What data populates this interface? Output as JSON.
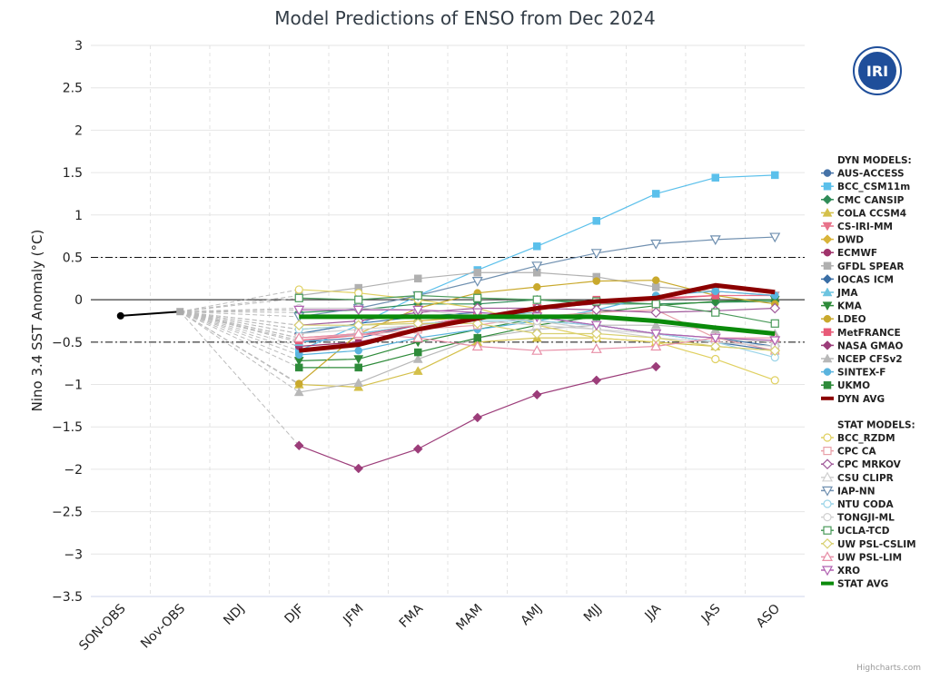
{
  "chart_data": {
    "type": "line",
    "title": "Model Predictions of ENSO from Dec 2024",
    "xlabel": "",
    "ylabel": "Nino 3.4 SST Anomaly (°C)",
    "categories": [
      "SON-OBS",
      "Nov-OBS",
      "NDJ",
      "DJF",
      "JFM",
      "FMA",
      "MAM",
      "AMJ",
      "MJJ",
      "JJA",
      "JAS",
      "ASO"
    ],
    "ylim": [
      -3.5,
      3
    ],
    "yticks": [
      "3",
      "2.5",
      "2",
      "1.5",
      "1",
      "0.5",
      "0",
      "−0.5",
      "−1",
      "−1.5",
      "−2",
      "−2.5",
      "−3",
      "−3.5"
    ],
    "reference_lines": [
      0,
      0.5,
      -0.5
    ],
    "grid": true,
    "legend_position": "right",
    "observed": {
      "categories": [
        "SON-OBS",
        "Nov-OBS"
      ],
      "values": [
        -0.19,
        -0.14
      ],
      "color": "#000000"
    },
    "forecast_categories": [
      "DJF",
      "JFM",
      "FMA",
      "MAM",
      "AMJ",
      "MJJ",
      "JJA",
      "JAS",
      "ASO"
    ],
    "groups": [
      {
        "header": "DYN MODELS:",
        "series": [
          {
            "name": "AUS-ACCESS",
            "color": "#4572a7",
            "marker": "circle",
            "values": [
              -0.5,
              -0.45,
              -0.3,
              -0.2,
              -0.25,
              -0.3,
              -0.4,
              -0.5,
              -0.6
            ]
          },
          {
            "name": "BCC_CSM11m",
            "color": "#5bc0eb",
            "marker": "square",
            "values": [
              -0.6,
              -0.3,
              0.05,
              0.35,
              0.63,
              0.93,
              1.25,
              1.44,
              1.47
            ]
          },
          {
            "name": "CMC CANSIP",
            "color": "#2e8b57",
            "marker": "diamond",
            "values": [
              -0.15,
              -0.12,
              -0.05,
              -0.05,
              0.0,
              -0.05,
              -0.05,
              -0.03,
              -0.02
            ]
          },
          {
            "name": "COLA CCSM4",
            "color": "#d4c04a",
            "marker": "triangle",
            "values": [
              -1.0,
              -1.03,
              -0.84,
              -0.5,
              -0.45,
              -0.45,
              -0.5,
              -0.55,
              -0.6
            ]
          },
          {
            "name": "CS-IRI-MM",
            "color": "#e8728a",
            "marker": "triangle-down",
            "values": [
              -0.45,
              -0.4,
              -0.3,
              -0.2,
              -0.1,
              -0.05,
              0.0,
              0.05,
              0.05
            ]
          },
          {
            "name": "DWD",
            "color": "#d9b43a",
            "marker": "diamond",
            "values": [
              -0.35,
              -0.3,
              -0.25,
              -0.2,
              -0.15,
              null,
              null,
              null,
              null
            ]
          },
          {
            "name": "ECMWF",
            "color": "#a0336b",
            "marker": "circle",
            "values": [
              -0.55,
              -0.5,
              -0.35,
              -0.2,
              -0.1,
              -0.05,
              null,
              null,
              null
            ]
          },
          {
            "name": "GFDL SPEAR",
            "color": "#b0b0b0",
            "marker": "square",
            "values": [
              0.05,
              0.14,
              0.25,
              0.32,
              0.32,
              0.27,
              0.15,
              0.1,
              0.05
            ]
          },
          {
            "name": "IOCAS ICM",
            "color": "#3a6ea5",
            "marker": "diamond",
            "values": [
              -0.4,
              -0.28,
              -0.2,
              -0.15,
              -0.2,
              -0.3,
              -0.4,
              -0.45,
              -0.55
            ]
          },
          {
            "name": "JMA",
            "color": "#6cc4e0",
            "marker": "triangle",
            "values": [
              -0.5,
              -0.4,
              -0.3,
              -0.2,
              -0.15,
              null,
              null,
              null,
              null
            ]
          },
          {
            "name": "KMA",
            "color": "#2e8b3a",
            "marker": "triangle-down",
            "values": [
              -0.72,
              -0.7,
              -0.5,
              -0.35,
              -0.22,
              -0.15,
              -0.07,
              -0.02,
              0.0
            ]
          },
          {
            "name": "LDEO",
            "color": "#c9a92d",
            "marker": "circle",
            "values": [
              -0.99,
              -0.4,
              -0.1,
              0.08,
              0.15,
              0.22,
              0.23,
              0.05,
              -0.05
            ]
          },
          {
            "name": "MetFRANCE",
            "color": "#e85a78",
            "marker": "square",
            "values": [
              -0.48,
              -0.42,
              -0.3,
              -0.2,
              -0.1,
              0.0,
              0.02,
              0.05,
              null
            ]
          },
          {
            "name": "NASA GMAO",
            "color": "#9c3d7a",
            "marker": "diamond",
            "values": [
              -1.72,
              -1.99,
              -1.76,
              -1.39,
              -1.12,
              -0.95,
              -0.79,
              null,
              null
            ]
          },
          {
            "name": "NCEP CFSv2",
            "color": "#b8b8b8",
            "marker": "triangle",
            "values": [
              -1.09,
              -0.98,
              -0.7,
              -0.45,
              -0.35,
              -0.3,
              -0.3,
              -0.35,
              -0.4
            ]
          },
          {
            "name": "SINTEX-F",
            "color": "#5ab4de",
            "marker": "circle",
            "values": [
              -0.65,
              -0.6,
              -0.45,
              -0.35,
              -0.25,
              -0.12,
              0.05,
              0.1,
              0.05
            ]
          },
          {
            "name": "UKMO",
            "color": "#2e8b3a",
            "marker": "square",
            "values": [
              -0.8,
              -0.8,
              -0.62,
              -0.45,
              -0.3,
              -0.2,
              null,
              null,
              null
            ]
          },
          {
            "name": "DYN AVG",
            "color": "#8b0000",
            "marker": "none",
            "avg": true,
            "values": [
              -0.6,
              -0.53,
              -0.35,
              -0.22,
              -0.1,
              -0.02,
              0.02,
              0.17,
              0.09
            ]
          }
        ]
      },
      {
        "header": "STAT MODELS:",
        "series": [
          {
            "name": "BCC_RZDM",
            "color": "#e0d060",
            "marker": "circle",
            "hollow": true,
            "values": [
              0.12,
              0.08,
              0.0,
              -0.1,
              -0.3,
              -0.45,
              -0.5,
              -0.7,
              -0.95
            ]
          },
          {
            "name": "CPC CA",
            "color": "#e8a0a8",
            "marker": "square",
            "hollow": true,
            "values": [
              -0.45,
              -0.42,
              -0.35,
              -0.3,
              -0.2,
              -0.15,
              -0.12,
              -0.45,
              -0.6
            ]
          },
          {
            "name": "CPC MRKOV",
            "color": "#a05a9a",
            "marker": "diamond",
            "hollow": true,
            "values": [
              -0.3,
              -0.25,
              -0.15,
              -0.1,
              -0.1,
              -0.12,
              -0.15,
              -0.13,
              -0.1
            ]
          },
          {
            "name": "CSU CLIPR",
            "color": "#d0d0d0",
            "marker": "triangle",
            "hollow": true,
            "values": [
              -0.4,
              -0.35,
              -0.3,
              -0.25,
              -0.3,
              -0.35,
              -0.4,
              -0.45,
              -0.5
            ]
          },
          {
            "name": "IAP-NN",
            "color": "#7090b0",
            "marker": "triangle-down",
            "hollow": true,
            "values": [
              -0.2,
              -0.1,
              0.05,
              0.22,
              0.4,
              0.55,
              0.66,
              0.71,
              0.74
            ]
          },
          {
            "name": "NTU CODA",
            "color": "#9ad4e8",
            "marker": "circle",
            "hollow": true,
            "values": [
              -0.35,
              -0.3,
              -0.28,
              -0.25,
              -0.25,
              -0.3,
              -0.4,
              -0.5,
              -0.68
            ]
          },
          {
            "name": "TONGJI-ML",
            "color": "#d0d0d0",
            "marker": "circle",
            "hollow": true,
            "values": [
              -0.1,
              -0.1,
              -0.12,
              -0.2,
              -0.25,
              -0.35,
              -0.45,
              -0.5,
              -0.55
            ]
          },
          {
            "name": "UCLA-TCD",
            "color": "#4a9a5a",
            "marker": "square",
            "hollow": true,
            "values": [
              0.02,
              0.0,
              0.05,
              0.02,
              0.0,
              -0.02,
              -0.05,
              -0.15,
              -0.28
            ]
          },
          {
            "name": "UW PSL-CSLIM",
            "color": "#d8d070",
            "marker": "diamond",
            "hollow": true,
            "values": [
              -0.3,
              -0.3,
              -0.28,
              -0.28,
              -0.4,
              -0.4,
              -0.45,
              -0.55,
              -0.6
            ]
          },
          {
            "name": "UW PSL-LIM",
            "color": "#e890a8",
            "marker": "triangle",
            "hollow": true,
            "values": [
              -0.45,
              -0.4,
              -0.45,
              -0.55,
              -0.6,
              -0.58,
              -0.55,
              -0.45,
              -0.45
            ]
          },
          {
            "name": "XRO",
            "color": "#b060b0",
            "marker": "triangle-down",
            "hollow": true,
            "values": [
              -0.12,
              -0.12,
              -0.12,
              -0.15,
              -0.2,
              -0.3,
              -0.4,
              -0.45,
              -0.48
            ]
          },
          {
            "name": "STAT AVG",
            "color": "#0a8a0a",
            "marker": "none",
            "avg": true,
            "values": [
              -0.2,
              -0.2,
              -0.2,
              -0.2,
              -0.2,
              -0.2,
              -0.25,
              -0.33,
              -0.4
            ]
          }
        ]
      }
    ]
  },
  "logo": {
    "text": "IRI",
    "color": "#1f4e9a"
  },
  "credit": "Highcharts.com"
}
